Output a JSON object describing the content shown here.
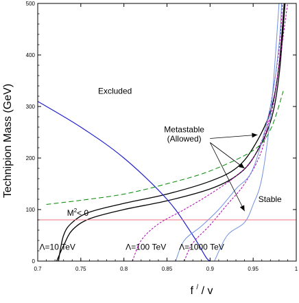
{
  "chart_data": {
    "type": "line",
    "title": "",
    "xlabel": {
      "main": "f",
      "sup": "/",
      "tail": " / v"
    },
    "ylabel": "Technipion Mass (GeV)",
    "xlim": [
      0.7,
      1.0
    ],
    "ylim": [
      0,
      500
    ],
    "x_ticks": [
      0.7,
      0.75,
      0.8,
      0.85,
      0.9,
      0.95,
      1.0
    ],
    "x_tick_labels": [
      "0.7",
      "0.75",
      "0.8",
      "0.85",
      "0.9",
      "0.95",
      "1"
    ],
    "y_ticks": [
      0,
      100,
      200,
      300,
      400,
      500
    ],
    "y_tick_labels": [
      "0",
      "100",
      "200",
      "300",
      "400",
      "500"
    ],
    "grid": false,
    "colors": {
      "black": "#000000",
      "blue": "#1f1fd0",
      "lightblue": "#6f8fe0",
      "magenta": "#b000b0",
      "green": "#008800",
      "pink": "#f07080"
    },
    "series": [
      {
        "style": "black-solid",
        "points": [
          [
            0.724,
            0
          ],
          [
            0.73,
            50
          ],
          [
            0.74,
            75
          ],
          [
            0.76,
            95
          ],
          [
            0.8,
            112
          ],
          [
            0.85,
            130
          ],
          [
            0.9,
            155
          ],
          [
            0.93,
            180
          ],
          [
            0.95,
            220
          ],
          [
            0.97,
            290
          ],
          [
            0.98,
            380
          ],
          [
            0.986,
            500
          ]
        ]
      },
      {
        "style": "black-solid",
        "points": [
          [
            0.722,
            0
          ],
          [
            0.73,
            30
          ],
          [
            0.74,
            60
          ],
          [
            0.76,
            82
          ],
          [
            0.8,
            100
          ],
          [
            0.85,
            117
          ],
          [
            0.9,
            140
          ],
          [
            0.93,
            165
          ],
          [
            0.95,
            200
          ],
          [
            0.97,
            270
          ],
          [
            0.98,
            360
          ],
          [
            0.987,
            500
          ]
        ]
      },
      {
        "style": "blue-solid",
        "points": [
          [
            0.7,
            310
          ],
          [
            0.75,
            260
          ],
          [
            0.8,
            200
          ],
          [
            0.85,
            120
          ],
          [
            0.88,
            50
          ],
          [
            0.895,
            8
          ],
          [
            0.9,
            0
          ]
        ]
      },
      {
        "style": "green-dashed",
        "points": [
          [
            0.71,
            110
          ],
          [
            0.75,
            118
          ],
          [
            0.8,
            130
          ],
          [
            0.85,
            150
          ],
          [
            0.9,
            175
          ],
          [
            0.95,
            215
          ],
          [
            0.97,
            255
          ],
          [
            0.985,
            330
          ]
        ]
      },
      {
        "style": "magenta-dotted",
        "points": [
          [
            0.81,
            0
          ],
          [
            0.82,
            40
          ],
          [
            0.84,
            72
          ],
          [
            0.87,
            100
          ],
          [
            0.9,
            130
          ],
          [
            0.93,
            165
          ],
          [
            0.95,
            200
          ],
          [
            0.97,
            280
          ],
          [
            0.98,
            380
          ],
          [
            0.99,
            500
          ]
        ]
      },
      {
        "style": "magenta-dotted",
        "points": [
          [
            0.87,
            0
          ],
          [
            0.88,
            35
          ],
          [
            0.9,
            70
          ],
          [
            0.92,
            110
          ],
          [
            0.94,
            150
          ],
          [
            0.96,
            215
          ],
          [
            0.97,
            300
          ],
          [
            0.98,
            410
          ],
          [
            0.984,
            500
          ]
        ]
      },
      {
        "style": "lightblue-solid",
        "points": [
          [
            0.86,
            0
          ],
          [
            0.87,
            40
          ],
          [
            0.89,
            68
          ],
          [
            0.91,
            100
          ],
          [
            0.93,
            140
          ],
          [
            0.95,
            180
          ],
          [
            0.97,
            300
          ],
          [
            0.98,
            420
          ],
          [
            0.983,
            500
          ]
        ]
      },
      {
        "style": "lightblue-solid",
        "points": [
          [
            0.905,
            0
          ],
          [
            0.92,
            50
          ],
          [
            0.94,
            75
          ],
          [
            0.95,
            110
          ],
          [
            0.96,
            160
          ],
          [
            0.97,
            280
          ],
          [
            0.975,
            380
          ],
          [
            0.98,
            500
          ]
        ]
      },
      {
        "style": "pink-solid",
        "points": [
          [
            0.7,
            80
          ],
          [
            1.0,
            80
          ]
        ]
      }
    ],
    "annotations": [
      {
        "id": "excluded",
        "text": "Excluded",
        "x": 0.77,
        "y": 325
      },
      {
        "id": "metastable",
        "text": "Metastable",
        "x": 0.87,
        "y": 250
      },
      {
        "id": "allowed",
        "text": "(Allowed)",
        "x": 0.87,
        "y": 232
      },
      {
        "id": "stable",
        "text": "Stable",
        "x": 0.956,
        "y": 115
      },
      {
        "id": "lambda10",
        "text": "Λ=10 TeV",
        "x": 0.702,
        "y": 22
      },
      {
        "id": "lambda100",
        "text": "Λ=100 TeV",
        "x": 0.802,
        "y": 22
      },
      {
        "id": "lambda1000",
        "text": "Λ=1000 TeV",
        "x": 0.864,
        "y": 22
      }
    ],
    "m2_label": {
      "pre": "M",
      "sup": "2",
      "post": "< 0",
      "x": 0.734,
      "y": 88
    },
    "arrows": [
      {
        "from": [
          0.9,
          238
        ],
        "to": [
          0.955,
          245
        ]
      },
      {
        "from": [
          0.9,
          230
        ],
        "to": [
          0.94,
          180
        ]
      },
      {
        "from": [
          0.9,
          230
        ],
        "to": [
          0.94,
          97
        ]
      }
    ]
  }
}
